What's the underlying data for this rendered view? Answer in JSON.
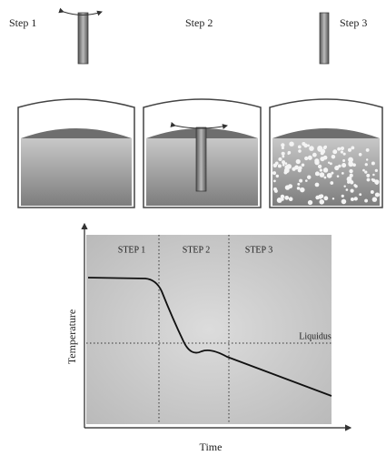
{
  "top": {
    "steps": [
      "Step 1",
      "Step 2",
      "Step 3"
    ]
  },
  "chart": {
    "step_labels": [
      "STEP 1",
      "STEP 2",
      "STEP 3"
    ],
    "liquidus": "Liquidus",
    "y_label": "Temperature",
    "x_label": "Time"
  }
}
